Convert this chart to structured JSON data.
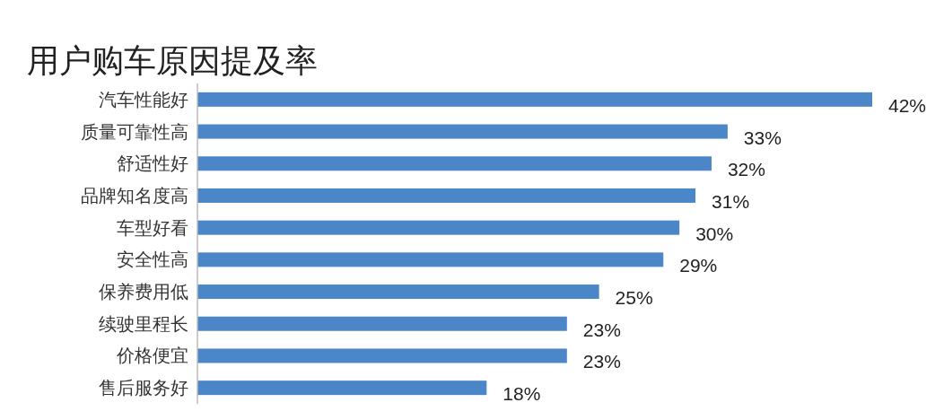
{
  "chart_data": {
    "type": "bar",
    "orientation": "horizontal",
    "title": "用户购车原因提及率",
    "categories": [
      "汽车性能好",
      "质量可靠性高",
      "舒适性好",
      "品牌知名度高",
      "车型好看",
      "安全性高",
      "保养费用低",
      "续驶里程长",
      "价格便宜",
      "售后服务好"
    ],
    "values": [
      42,
      33,
      32,
      31,
      30,
      29,
      25,
      23,
      23,
      18
    ],
    "value_labels": [
      "42%",
      "33%",
      "32%",
      "31%",
      "30%",
      "29%",
      "25%",
      "23%",
      "23%",
      "18%"
    ],
    "color": "#4a86c8"
  }
}
